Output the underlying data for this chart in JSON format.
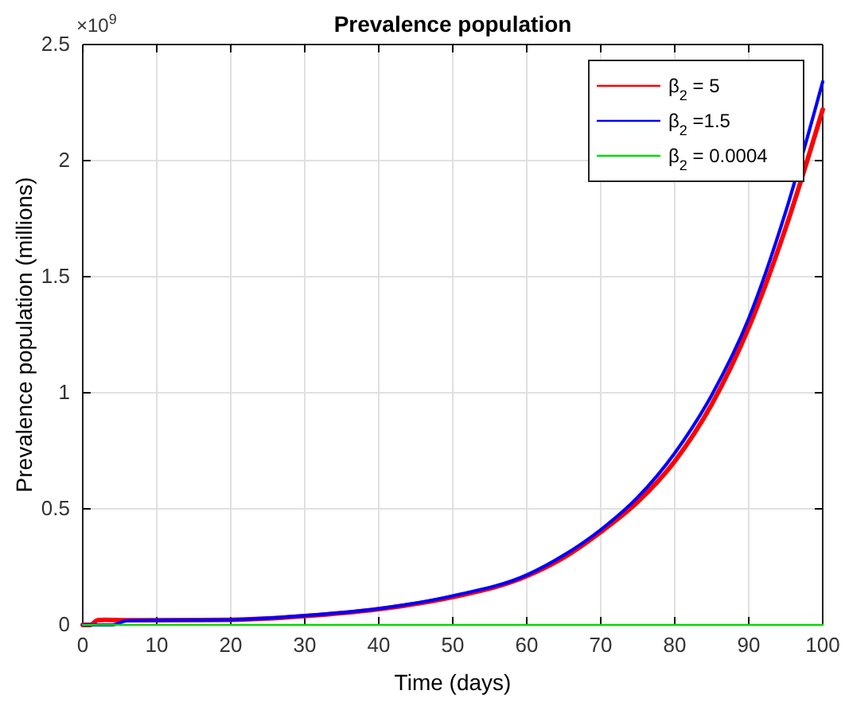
{
  "chart_data": {
    "type": "line",
    "title": "Prevalence population",
    "xlabel": "Time (days)",
    "ylabel": "Prevalence population (millions)",
    "annotations": [
      "×10$^{9}$"
    ],
    "xlim": [
      0,
      100
    ],
    "xticks": [
      0,
      10,
      20,
      30,
      40,
      50,
      60,
      70,
      80,
      90,
      100
    ],
    "ylim": [
      0,
      2.5
    ],
    "yticks": [
      0,
      0.5,
      1,
      1.5,
      2,
      2.5
    ],
    "grid": true,
    "legend": "top right",
    "line_style": "solid",
    "marker": "none",
    "series": [
      {
        "name": "β$_{2}$ = 5",
        "color": "#ff0000",
        "x": [
          0,
          1,
          2,
          3,
          6,
          10,
          20,
          30,
          40,
          50,
          60,
          65,
          70,
          75,
          80,
          85,
          90,
          95,
          100
        ],
        "values": [
          0,
          0,
          0.02,
          0.022,
          0.02,
          0.02,
          0.022,
          0.038,
          0.068,
          0.12,
          0.21,
          0.29,
          0.4,
          0.53,
          0.705,
          0.95,
          1.28,
          1.71,
          2.22
        ]
      },
      {
        "name": "β$_{2}$ =1.5",
        "color": "#0000ff",
        "x": [
          0,
          4,
          6,
          10,
          20,
          30,
          40,
          50,
          60,
          65,
          70,
          75,
          80,
          85,
          90,
          95,
          100
        ],
        "values": [
          0,
          0,
          0.018,
          0.02,
          0.022,
          0.04,
          0.07,
          0.125,
          0.215,
          0.3,
          0.41,
          0.55,
          0.74,
          0.99,
          1.32,
          1.78,
          2.34
        ]
      },
      {
        "name": "β$_{2}$ = 0.0004",
        "color": "#00dd00",
        "x": [
          0,
          50,
          100
        ],
        "values": [
          0,
          0,
          0
        ]
      }
    ]
  }
}
